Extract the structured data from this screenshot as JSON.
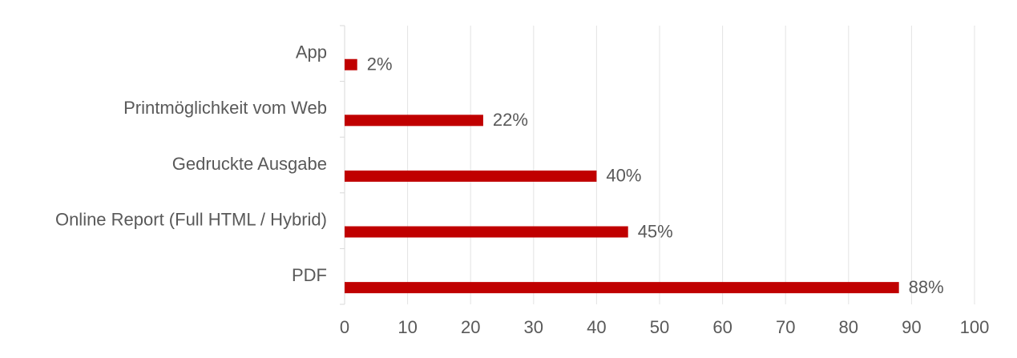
{
  "chart_data": {
    "type": "hbar",
    "categories": [
      "App",
      "Printmöglichkeit vom Web",
      "Gedruckte Ausgabe",
      "Online Report (Full HTML / Hybrid)",
      "PDF"
    ],
    "values": [
      2,
      22,
      40,
      45,
      88
    ],
    "value_labels": [
      "2%",
      "22%",
      "40%",
      "45%",
      "88%"
    ],
    "color": "#c00000",
    "xlim": [
      0,
      100
    ],
    "xticks": [
      0,
      10,
      20,
      30,
      40,
      50,
      60,
      70,
      80,
      90,
      100
    ],
    "grid": true
  }
}
